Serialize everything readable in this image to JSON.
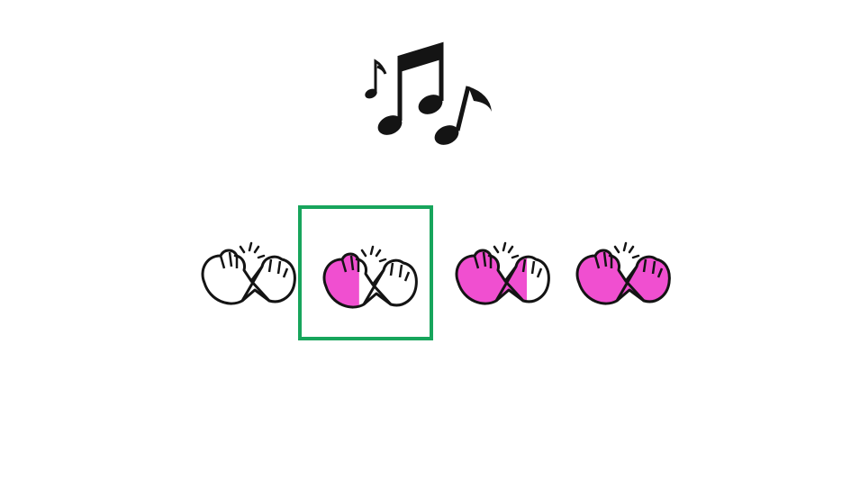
{
  "prompt": {
    "icon": "music-notes-icon"
  },
  "options": [
    {
      "icon": "pinky-promise-icon",
      "fill_level": 0,
      "selected": false
    },
    {
      "icon": "pinky-promise-icon",
      "fill_level": 0.4,
      "selected": true
    },
    {
      "icon": "pinky-promise-icon",
      "fill_level": 0.75,
      "selected": false
    },
    {
      "icon": "pinky-promise-icon",
      "fill_level": 1,
      "selected": false
    }
  ],
  "colors": {
    "fill": "#f04fd0",
    "outline": "#141414",
    "selection": "#17a55c",
    "background": "#ffffff"
  }
}
